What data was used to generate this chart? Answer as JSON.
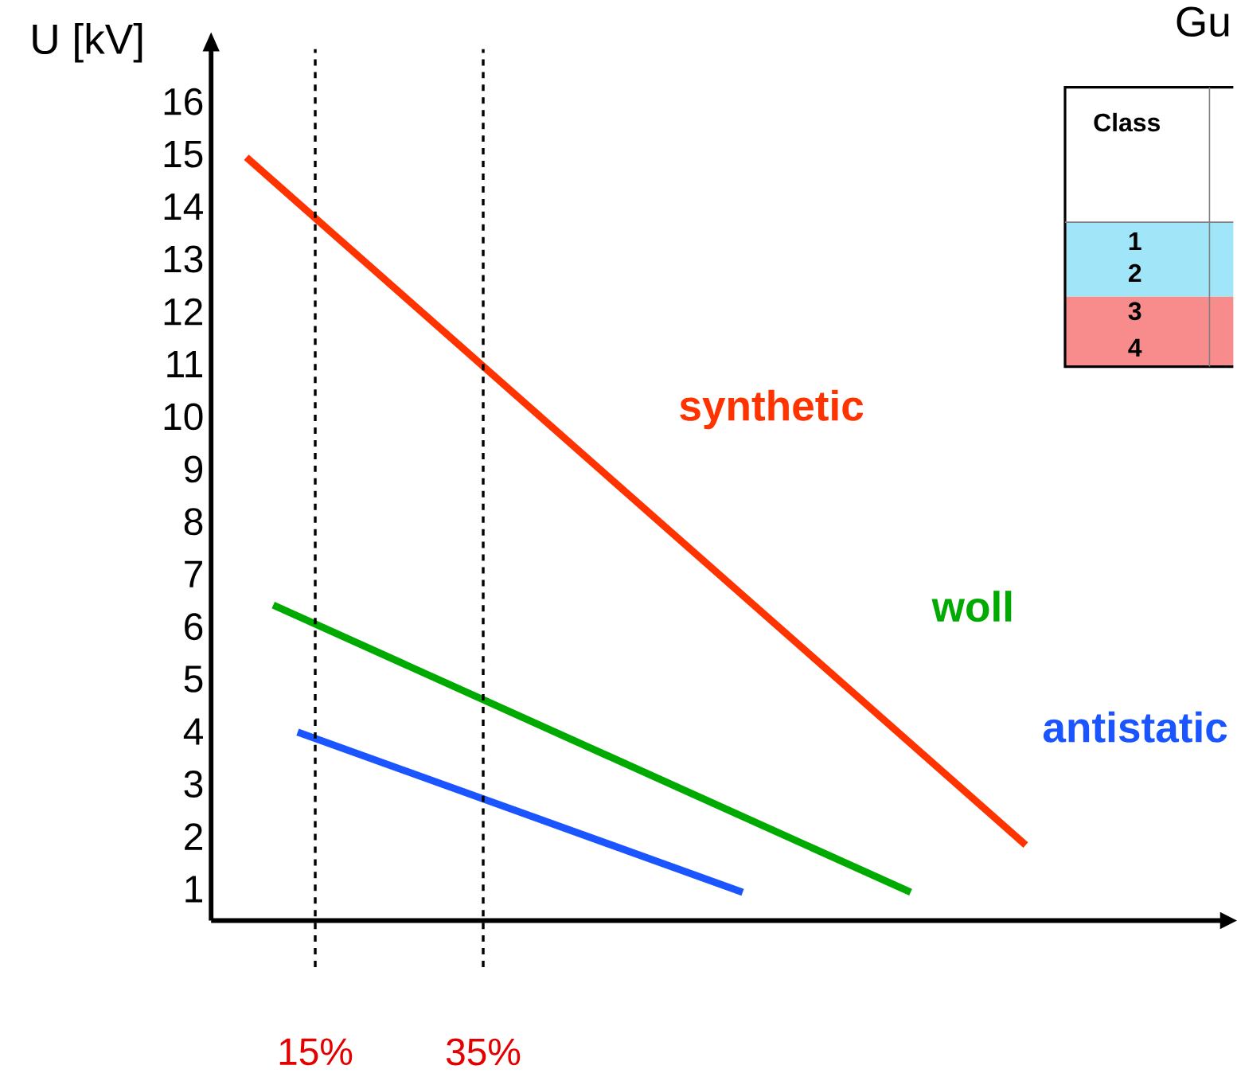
{
  "chart_data": {
    "type": "line",
    "title": "Gu",
    "ylabel": "U [kV]",
    "xlim": [
      2.6,
      123
    ],
    "ylim": [
      0.4,
      17
    ],
    "xticks": [
      {
        "value": 15,
        "label": "15%"
      },
      {
        "value": 35,
        "label": "35%"
      }
    ],
    "yticks": [
      1,
      2,
      3,
      4,
      5,
      6,
      7,
      8,
      9,
      10,
      11,
      12,
      13,
      14,
      15,
      16
    ],
    "line_style": "solid",
    "series": [
      {
        "name": "synthetic",
        "color": "#ff3300",
        "x": [
          6.8,
          99.6
        ],
        "values": [
          14.94,
          1.84
        ]
      },
      {
        "name": "woll",
        "color": "#00aa00",
        "x": [
          10.0,
          85.9
        ],
        "values": [
          6.41,
          0.94
        ]
      },
      {
        "name": "antistatic",
        "color": "#1a55ff",
        "x": [
          12.9,
          65.9
        ],
        "values": [
          3.99,
          0.94
        ]
      }
    ],
    "ref_lines": [
      {
        "axis": "x",
        "value": 15,
        "color": "#000000",
        "line_style": "dashed"
      },
      {
        "axis": "x",
        "value": 35,
        "color": "#000000",
        "line_style": "dashed"
      }
    ],
    "annotations": [
      "Class",
      "1",
      "2",
      "3",
      "4"
    ]
  }
}
